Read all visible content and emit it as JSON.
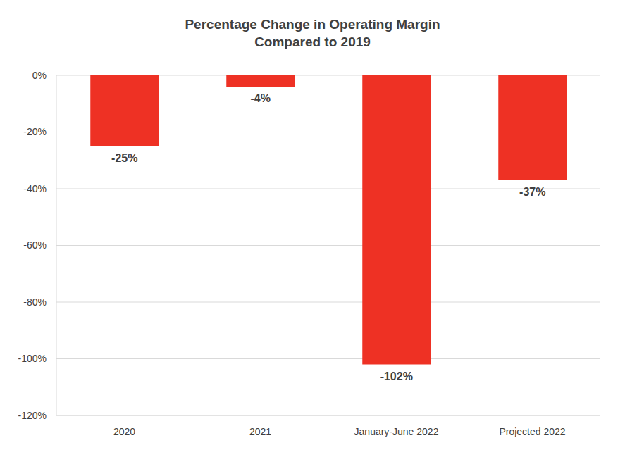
{
  "chart_data": {
    "type": "bar",
    "title": "Percentage Change in Operating Margin\nCompared to 2019",
    "categories": [
      "2020",
      "2021",
      "January-June 2022",
      "Projected 2022"
    ],
    "values": [
      -25,
      -4,
      -102,
      -37
    ],
    "value_labels": [
      "-25%",
      "-4%",
      "-102%",
      "-37%"
    ],
    "data_labels": true,
    "color": "#EE3124",
    "ylim": [
      -120,
      0
    ],
    "yticks": [
      {
        "value": -120,
        "label": "-120%"
      },
      {
        "value": -100,
        "label": "-100%"
      },
      {
        "value": -80,
        "label": "-80%"
      },
      {
        "value": -60,
        "label": "-60%"
      },
      {
        "value": -40,
        "label": "-40%"
      },
      {
        "value": -20,
        "label": "-20%"
      },
      {
        "value": 0,
        "label": "0%"
      }
    ],
    "grid": true
  }
}
